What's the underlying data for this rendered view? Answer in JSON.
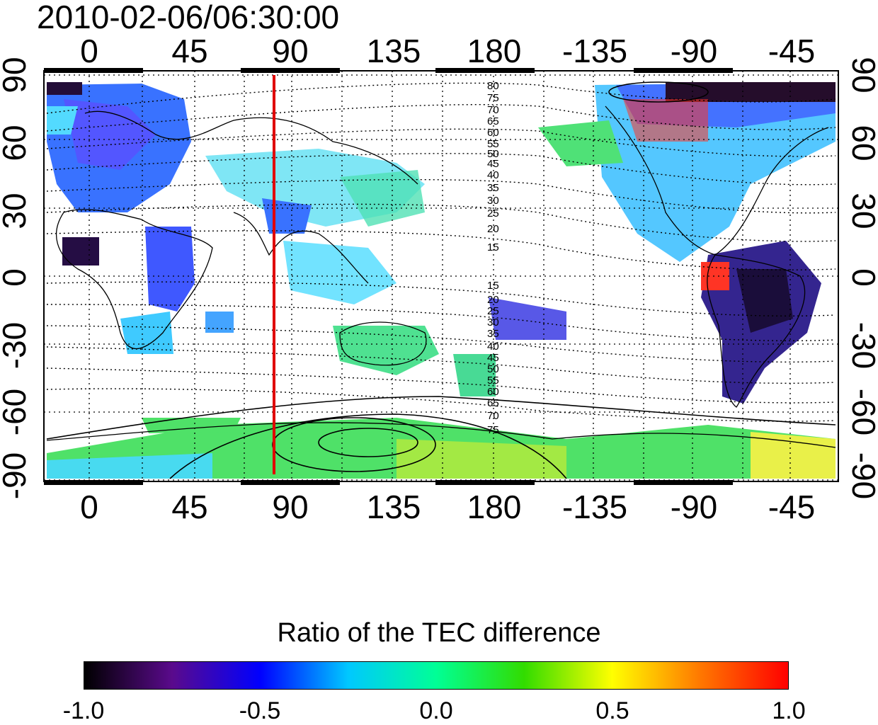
{
  "title": "2010-02-06/06:30:00",
  "map": {
    "top_lon_ticks": [
      "0",
      "45",
      "90",
      "135",
      "180",
      "-135",
      "-90",
      "-45"
    ],
    "bottom_lon_ticks": [
      "0",
      "45",
      "90",
      "135",
      "180",
      "-135",
      "-90",
      "-45"
    ],
    "left_lat_ticks": [
      "90",
      "60",
      "30",
      "0",
      "-30",
      "-60",
      "-90"
    ],
    "right_lat_ticks": [
      "90",
      "60",
      "30",
      "0",
      "-30",
      "-60",
      "-90"
    ],
    "contour_labels_north": [
      "80",
      "75",
      "70",
      "65",
      "60",
      "55",
      "50",
      "45",
      "40",
      "35",
      "30",
      "25",
      "20",
      "15"
    ],
    "contour_labels_south": [
      "15",
      "20",
      "25",
      "30",
      "35",
      "40",
      "45",
      "50",
      "55",
      "60",
      "65",
      "70",
      "75"
    ],
    "red_line_longitude": 83,
    "lon_range": [
      -20,
      340
    ],
    "lat_range": [
      -90,
      90
    ]
  },
  "colorbar": {
    "title": "Ratio of the TEC difference",
    "ticks": [
      "-1.0",
      "-0.5",
      "0.0",
      "0.5",
      "1.0"
    ],
    "colors": [
      "#000000",
      "#5a0a8c",
      "#0000ff",
      "#00c8ff",
      "#00ff96",
      "#32dc00",
      "#ffff00",
      "#ff7800",
      "#ff0000"
    ]
  }
}
